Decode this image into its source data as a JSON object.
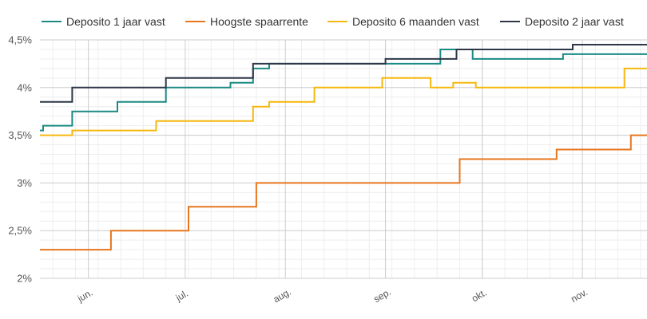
{
  "chart_data": {
    "type": "line",
    "step": true,
    "x_axis": {
      "type": "date",
      "min": "2023-05-17",
      "max": "2023-11-21"
    },
    "x_ticks": [
      {
        "date": "2023-06-01",
        "label": "jun."
      },
      {
        "date": "2023-07-01",
        "label": "jul."
      },
      {
        "date": "2023-08-01",
        "label": "aug."
      },
      {
        "date": "2023-09-01",
        "label": "sep."
      },
      {
        "date": "2023-10-01",
        "label": "okt."
      },
      {
        "date": "2023-11-01",
        "label": "nov."
      }
    ],
    "ylim": [
      2,
      4.5
    ],
    "y_ticks": [
      {
        "value": 2,
        "label": "2%"
      },
      {
        "value": 2.5,
        "label": "2,5%"
      },
      {
        "value": 3,
        "label": "3%"
      },
      {
        "value": 3.5,
        "label": "3,5%"
      },
      {
        "value": 4,
        "label": "4%"
      },
      {
        "value": 4.5,
        "label": "4,5%"
      }
    ],
    "grid": true,
    "legend_position": "top",
    "series": [
      {
        "name": "Deposito 1 jaar vast",
        "color": "#1b8a84",
        "points": [
          [
            "2023-05-17",
            3.55
          ],
          [
            "2023-05-18",
            3.6
          ],
          [
            "2023-05-27",
            3.75
          ],
          [
            "2023-06-10",
            3.85
          ],
          [
            "2023-06-25",
            4.0
          ],
          [
            "2023-07-15",
            4.05
          ],
          [
            "2023-07-22",
            4.2
          ],
          [
            "2023-07-27",
            4.25
          ],
          [
            "2023-09-01",
            4.25
          ],
          [
            "2023-09-03",
            4.25
          ],
          [
            "2023-09-18",
            4.4
          ],
          [
            "2023-09-28",
            4.3
          ],
          [
            "2023-10-26",
            4.35
          ],
          [
            "2023-11-21",
            4.35
          ]
        ]
      },
      {
        "name": "Hoogste spaarrente",
        "color": "#e8761e",
        "points": [
          [
            "2023-05-17",
            2.3
          ],
          [
            "2023-06-08",
            2.5
          ],
          [
            "2023-07-02",
            2.75
          ],
          [
            "2023-07-23",
            3.0
          ],
          [
            "2023-09-24",
            3.25
          ],
          [
            "2023-10-24",
            3.35
          ],
          [
            "2023-11-16",
            3.5
          ],
          [
            "2023-11-21",
            3.5
          ]
        ]
      },
      {
        "name": "Deposito 6 maanden vast",
        "color": "#f5b80e",
        "points": [
          [
            "2023-05-17",
            3.5
          ],
          [
            "2023-05-27",
            3.55
          ],
          [
            "2023-06-22",
            3.65
          ],
          [
            "2023-07-22",
            3.8
          ],
          [
            "2023-07-27",
            3.85
          ],
          [
            "2023-08-10",
            4.0
          ],
          [
            "2023-08-31",
            4.1
          ],
          [
            "2023-09-15",
            4.0
          ],
          [
            "2023-09-22",
            4.05
          ],
          [
            "2023-09-29",
            4.0
          ],
          [
            "2023-11-14",
            4.2
          ],
          [
            "2023-11-21",
            4.2
          ]
        ]
      },
      {
        "name": "Deposito 2 jaar vast",
        "color": "#2d3748",
        "points": [
          [
            "2023-05-17",
            3.85
          ],
          [
            "2023-05-27",
            4.0
          ],
          [
            "2023-06-25",
            4.1
          ],
          [
            "2023-07-22",
            4.25
          ],
          [
            "2023-09-01",
            4.3
          ],
          [
            "2023-09-23",
            4.4
          ],
          [
            "2023-10-29",
            4.45
          ],
          [
            "2023-11-21",
            4.45
          ]
        ]
      }
    ]
  }
}
